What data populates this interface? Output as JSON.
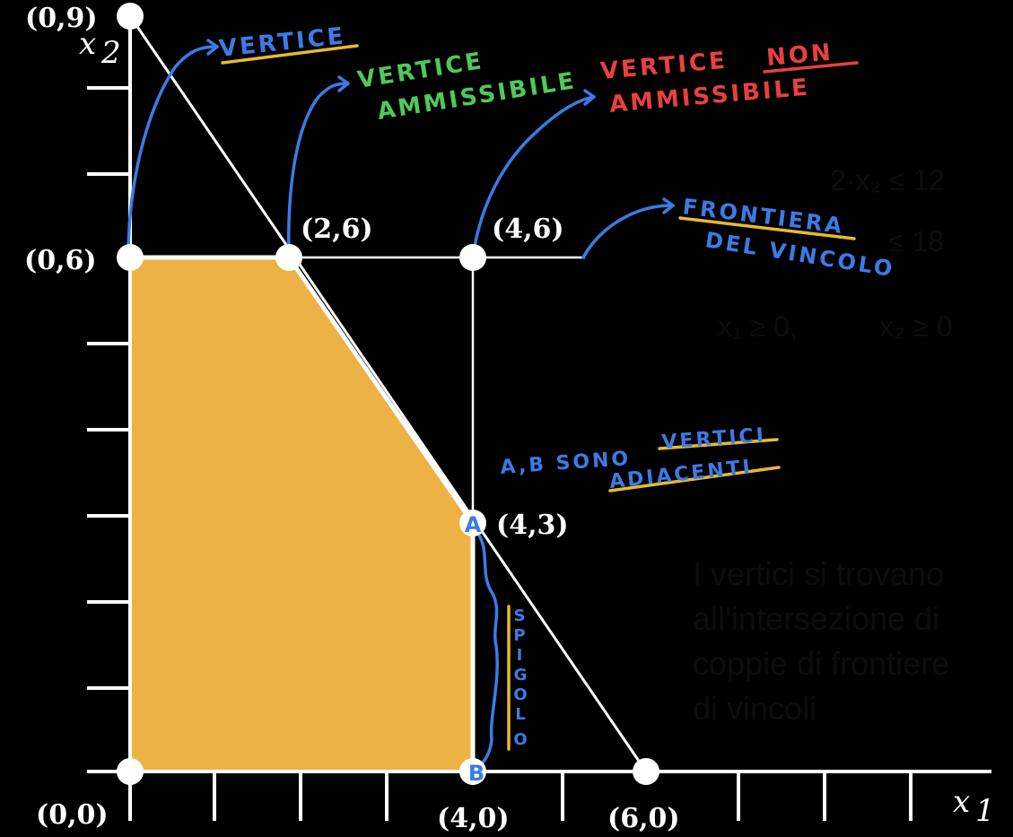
{
  "points": {
    "p09": "(0,9)",
    "p06": "(0,6)",
    "p26": "(2,6)",
    "p46": "(4,6)",
    "p43": "(4,3)",
    "p00": "(0,0)",
    "p40": "(4,0)",
    "p60": "(6,0)"
  },
  "axes": {
    "x_label": "x",
    "x_sub": "1",
    "y_label": "x",
    "y_sub": "2"
  },
  "vertex_markers": {
    "a": "A",
    "b": "B"
  },
  "annotations": {
    "vertice": "VERTICE",
    "vertice_ammissibile_1": "VERTICE",
    "vertice_ammissibile_2": "AMMISSIBILE",
    "vertice_non_1": "VERTICE",
    "vertice_non_2": "NON",
    "vertice_non_3": "AMMISSIBILE",
    "frontiera_1": "FRONTIERA",
    "frontiera_2": "DEL VINCOLO",
    "adiacenti_1": "A,B SONO",
    "adiacenti_2": "VERTICI",
    "adiacenti_3": "ADIACENTI",
    "spigolo": [
      "S",
      "P",
      "I",
      "G",
      "O",
      "L",
      "O"
    ]
  },
  "faded_text": {
    "c1": "2·x₂ ≤ 12",
    "c2": "≤ 18",
    "nonneg_1": "x₁ ≥ 0,",
    "nonneg_2": "x₂ ≥ 0",
    "note_1": "I vertici si trovano",
    "note_2": "all'intersezione di",
    "note_3": "coppie di frontiere",
    "note_4": "di vincoli"
  },
  "colors": {
    "feasible_fill": "#ecb244",
    "blue": "#3b7be6",
    "green": "#4fc95a",
    "red": "#e84040",
    "yellow": "#e8b931"
  }
}
